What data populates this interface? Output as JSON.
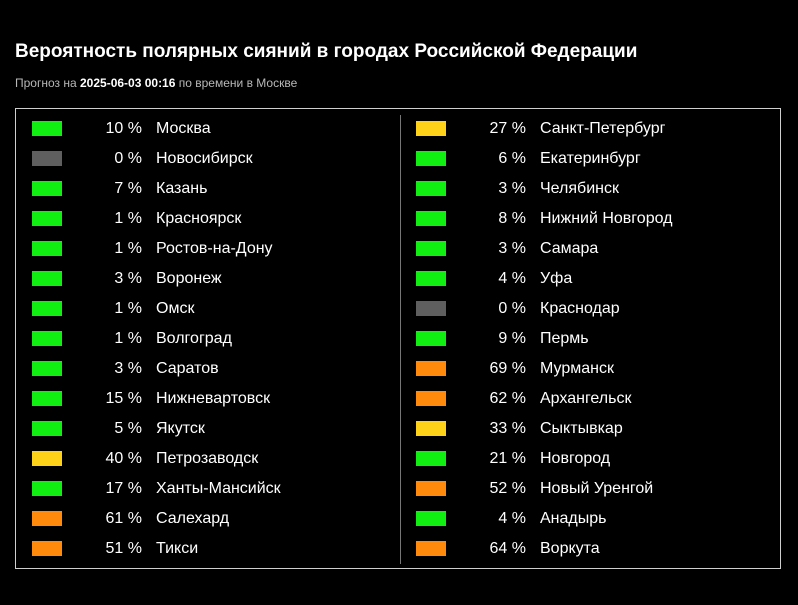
{
  "header": {
    "title": "Вероятность полярных сияний в городах Российской Федерации",
    "subtitle_prefix": "Прогноз на ",
    "timestamp": "2025-06-03 00:16",
    "subtitle_suffix": " по времени в Москве"
  },
  "colors": {
    "green": "#11ee11",
    "gray": "#5f5f5f",
    "yellow": "#ffd21a",
    "orange": "#ff8a0c"
  },
  "left_column": [
    {
      "pct": "10 %",
      "city": "Москва",
      "level": "green"
    },
    {
      "pct": "0 %",
      "city": "Новосибирск",
      "level": "gray"
    },
    {
      "pct": "7 %",
      "city": "Казань",
      "level": "green"
    },
    {
      "pct": "1 %",
      "city": "Красноярск",
      "level": "green"
    },
    {
      "pct": "1 %",
      "city": "Ростов-на-Дону",
      "level": "green"
    },
    {
      "pct": "3 %",
      "city": "Воронеж",
      "level": "green"
    },
    {
      "pct": "1 %",
      "city": "Омск",
      "level": "green"
    },
    {
      "pct": "1 %",
      "city": "Волгоград",
      "level": "green"
    },
    {
      "pct": "3 %",
      "city": "Саратов",
      "level": "green"
    },
    {
      "pct": "15 %",
      "city": "Нижневартовск",
      "level": "green"
    },
    {
      "pct": "5 %",
      "city": "Якутск",
      "level": "green"
    },
    {
      "pct": "40 %",
      "city": "Петрозаводск",
      "level": "yellow"
    },
    {
      "pct": "17 %",
      "city": "Ханты-Мансийск",
      "level": "green"
    },
    {
      "pct": "61 %",
      "city": "Салехард",
      "level": "orange"
    },
    {
      "pct": "51 %",
      "city": "Тикси",
      "level": "orange"
    }
  ],
  "right_column": [
    {
      "pct": "27 %",
      "city": "Санкт-Петербург",
      "level": "yellow"
    },
    {
      "pct": "6 %",
      "city": "Екатеринбург",
      "level": "green"
    },
    {
      "pct": "3 %",
      "city": "Челябинск",
      "level": "green"
    },
    {
      "pct": "8 %",
      "city": "Нижний Новгород",
      "level": "green"
    },
    {
      "pct": "3 %",
      "city": "Самара",
      "level": "green"
    },
    {
      "pct": "4 %",
      "city": "Уфа",
      "level": "green"
    },
    {
      "pct": "0 %",
      "city": "Краснодар",
      "level": "gray"
    },
    {
      "pct": "9 %",
      "city": "Пермь",
      "level": "green"
    },
    {
      "pct": "69 %",
      "city": "Мурманск",
      "level": "orange"
    },
    {
      "pct": "62 %",
      "city": "Архангельск",
      "level": "orange"
    },
    {
      "pct": "33 %",
      "city": "Сыктывкар",
      "level": "yellow"
    },
    {
      "pct": "21 %",
      "city": "Новгород",
      "level": "green"
    },
    {
      "pct": "52 %",
      "city": "Новый Уренгой",
      "level": "orange"
    },
    {
      "pct": "4 %",
      "city": "Анадырь",
      "level": "green"
    },
    {
      "pct": "64 %",
      "city": "Воркута",
      "level": "orange"
    }
  ]
}
